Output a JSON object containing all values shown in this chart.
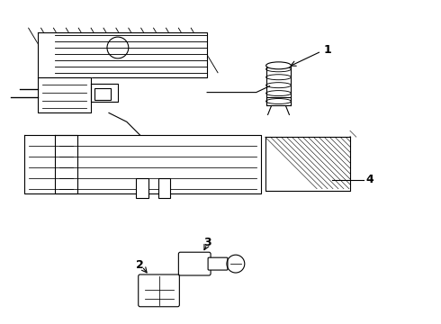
{
  "background_color": "#ffffff",
  "line_color": "#000000",
  "line_width": 0.8,
  "label_fontsize": 9
}
